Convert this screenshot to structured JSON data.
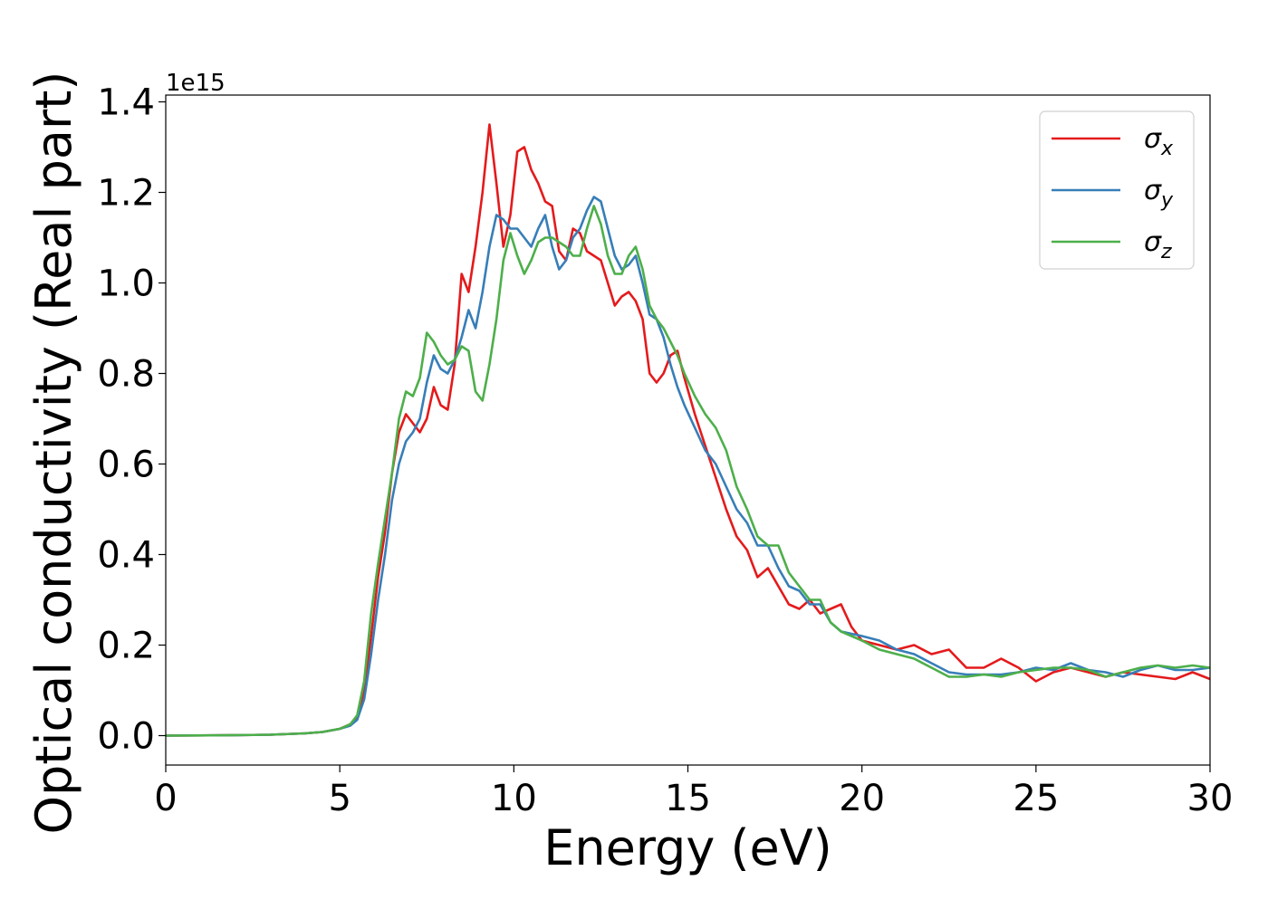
{
  "chart_data": {
    "type": "line",
    "xlabel": "Energy (eV)",
    "ylabel": "Optical conductivity (Real part)",
    "y_offset_label": "1e15",
    "xlim": [
      0,
      30
    ],
    "ylim": [
      -0.065,
      1.415
    ],
    "x_ticks": [
      0,
      5,
      10,
      15,
      20,
      25,
      30
    ],
    "x_tick_labels": [
      "0",
      "5",
      "10",
      "15",
      "20",
      "25",
      "30"
    ],
    "y_ticks": [
      0.0,
      0.2,
      0.4,
      0.6,
      0.8,
      1.0,
      1.2,
      1.4
    ],
    "y_tick_labels": [
      "0.0",
      "0.2",
      "0.4",
      "0.6",
      "0.8",
      "1.0",
      "1.2",
      "1.4"
    ],
    "grid": false,
    "legend_position": "top-right",
    "series": [
      {
        "name": "σx",
        "symbol": "σ",
        "subscript": "x",
        "color": "#e41a1c",
        "x": [
          0,
          2,
          3,
          4,
          4.5,
          5,
          5.3,
          5.5,
          5.7,
          5.9,
          6.1,
          6.3,
          6.5,
          6.7,
          6.9,
          7.1,
          7.3,
          7.5,
          7.7,
          7.9,
          8.1,
          8.3,
          8.5,
          8.7,
          8.9,
          9.1,
          9.3,
          9.5,
          9.7,
          9.9,
          10.1,
          10.3,
          10.5,
          10.7,
          10.9,
          11.1,
          11.3,
          11.5,
          11.7,
          11.9,
          12.1,
          12.3,
          12.5,
          12.7,
          12.9,
          13.1,
          13.3,
          13.5,
          13.7,
          13.9,
          14.1,
          14.3,
          14.5,
          14.7,
          14.9,
          15.2,
          15.5,
          15.8,
          16.1,
          16.4,
          16.7,
          17.0,
          17.3,
          17.6,
          17.9,
          18.2,
          18.5,
          18.8,
          19.1,
          19.4,
          19.7,
          20.0,
          20.5,
          21.0,
          21.5,
          22.0,
          22.5,
          23.0,
          23.5,
          24.0,
          24.5,
          25.0,
          25.5,
          26.0,
          26.5,
          27.0,
          27.5,
          28.0,
          28.5,
          29.0,
          29.5,
          30.0
        ],
        "y": [
          0,
          0.001,
          0.002,
          0.005,
          0.008,
          0.015,
          0.025,
          0.04,
          0.1,
          0.22,
          0.35,
          0.45,
          0.58,
          0.67,
          0.71,
          0.69,
          0.67,
          0.7,
          0.77,
          0.73,
          0.72,
          0.82,
          1.02,
          0.98,
          1.08,
          1.2,
          1.35,
          1.22,
          1.08,
          1.15,
          1.29,
          1.3,
          1.25,
          1.22,
          1.18,
          1.17,
          1.07,
          1.05,
          1.12,
          1.11,
          1.07,
          1.06,
          1.05,
          1.0,
          0.95,
          0.97,
          0.98,
          0.96,
          0.92,
          0.8,
          0.78,
          0.8,
          0.84,
          0.85,
          0.79,
          0.71,
          0.64,
          0.57,
          0.5,
          0.44,
          0.41,
          0.35,
          0.37,
          0.33,
          0.29,
          0.28,
          0.3,
          0.27,
          0.28,
          0.29,
          0.24,
          0.21,
          0.2,
          0.19,
          0.2,
          0.18,
          0.19,
          0.15,
          0.15,
          0.17,
          0.15,
          0.12,
          0.14,
          0.15,
          0.14,
          0.13,
          0.14,
          0.135,
          0.13,
          0.125,
          0.14,
          0.125
        ]
      },
      {
        "name": "σy",
        "symbol": "σ",
        "subscript": "y",
        "color": "#377eb8",
        "x": [
          0,
          2,
          3,
          4,
          4.5,
          5,
          5.3,
          5.5,
          5.7,
          5.9,
          6.1,
          6.3,
          6.5,
          6.7,
          6.9,
          7.1,
          7.3,
          7.5,
          7.7,
          7.9,
          8.1,
          8.3,
          8.5,
          8.7,
          8.9,
          9.1,
          9.3,
          9.5,
          9.7,
          9.9,
          10.1,
          10.3,
          10.5,
          10.7,
          10.9,
          11.1,
          11.3,
          11.5,
          11.7,
          11.9,
          12.1,
          12.3,
          12.5,
          12.7,
          12.9,
          13.1,
          13.3,
          13.5,
          13.7,
          13.9,
          14.1,
          14.3,
          14.5,
          14.7,
          14.9,
          15.2,
          15.5,
          15.8,
          16.1,
          16.4,
          16.7,
          17.0,
          17.3,
          17.6,
          17.9,
          18.2,
          18.5,
          18.8,
          19.1,
          19.4,
          19.7,
          20.0,
          20.5,
          21.0,
          21.5,
          22.0,
          22.5,
          23.0,
          23.5,
          24.0,
          24.5,
          25.0,
          25.5,
          26.0,
          26.5,
          27.0,
          27.5,
          28.0,
          28.5,
          29.0,
          29.5,
          30.0
        ],
        "y": [
          0,
          0.001,
          0.002,
          0.005,
          0.008,
          0.015,
          0.022,
          0.035,
          0.08,
          0.18,
          0.3,
          0.4,
          0.52,
          0.6,
          0.65,
          0.67,
          0.7,
          0.78,
          0.84,
          0.81,
          0.8,
          0.83,
          0.88,
          0.94,
          0.9,
          0.98,
          1.08,
          1.15,
          1.14,
          1.12,
          1.12,
          1.1,
          1.08,
          1.12,
          1.15,
          1.08,
          1.03,
          1.05,
          1.1,
          1.12,
          1.16,
          1.19,
          1.18,
          1.12,
          1.06,
          1.03,
          1.04,
          1.06,
          1.0,
          0.93,
          0.92,
          0.88,
          0.82,
          0.77,
          0.73,
          0.68,
          0.63,
          0.6,
          0.55,
          0.5,
          0.47,
          0.42,
          0.42,
          0.37,
          0.33,
          0.32,
          0.29,
          0.29,
          0.25,
          0.23,
          0.225,
          0.22,
          0.21,
          0.19,
          0.18,
          0.16,
          0.14,
          0.135,
          0.135,
          0.135,
          0.14,
          0.15,
          0.145,
          0.16,
          0.145,
          0.14,
          0.13,
          0.145,
          0.155,
          0.145,
          0.145,
          0.15
        ]
      },
      {
        "name": "σz",
        "symbol": "σ",
        "subscript": "z",
        "color": "#4daf4a",
        "x": [
          0,
          2,
          3,
          4,
          4.5,
          5,
          5.3,
          5.5,
          5.7,
          5.9,
          6.1,
          6.3,
          6.5,
          6.7,
          6.9,
          7.1,
          7.3,
          7.5,
          7.7,
          7.9,
          8.1,
          8.3,
          8.5,
          8.7,
          8.9,
          9.1,
          9.3,
          9.5,
          9.7,
          9.9,
          10.1,
          10.3,
          10.5,
          10.7,
          10.9,
          11.1,
          11.3,
          11.5,
          11.7,
          11.9,
          12.1,
          12.3,
          12.5,
          12.7,
          12.9,
          13.1,
          13.3,
          13.5,
          13.7,
          13.9,
          14.1,
          14.3,
          14.5,
          14.7,
          14.9,
          15.2,
          15.5,
          15.8,
          16.1,
          16.4,
          16.7,
          17.0,
          17.3,
          17.6,
          17.9,
          18.2,
          18.5,
          18.8,
          19.1,
          19.4,
          19.7,
          20.0,
          20.5,
          21.0,
          21.5,
          22.0,
          22.5,
          23.0,
          23.5,
          24.0,
          24.5,
          25.0,
          25.5,
          26.0,
          26.5,
          27.0,
          27.5,
          28.0,
          28.5,
          29.0,
          29.5,
          30.0
        ],
        "y": [
          0,
          0.001,
          0.002,
          0.005,
          0.008,
          0.015,
          0.025,
          0.045,
          0.12,
          0.27,
          0.38,
          0.48,
          0.58,
          0.7,
          0.76,
          0.75,
          0.79,
          0.89,
          0.87,
          0.84,
          0.82,
          0.83,
          0.86,
          0.85,
          0.76,
          0.74,
          0.82,
          0.92,
          1.05,
          1.11,
          1.06,
          1.02,
          1.05,
          1.09,
          1.1,
          1.1,
          1.09,
          1.08,
          1.06,
          1.06,
          1.12,
          1.17,
          1.13,
          1.06,
          1.02,
          1.02,
          1.06,
          1.08,
          1.03,
          0.95,
          0.92,
          0.9,
          0.87,
          0.84,
          0.8,
          0.75,
          0.71,
          0.68,
          0.63,
          0.55,
          0.5,
          0.44,
          0.42,
          0.42,
          0.36,
          0.33,
          0.3,
          0.3,
          0.25,
          0.23,
          0.22,
          0.21,
          0.19,
          0.18,
          0.17,
          0.15,
          0.13,
          0.13,
          0.135,
          0.13,
          0.14,
          0.145,
          0.15,
          0.15,
          0.145,
          0.13,
          0.14,
          0.15,
          0.155,
          0.15,
          0.155,
          0.15
        ]
      }
    ]
  }
}
